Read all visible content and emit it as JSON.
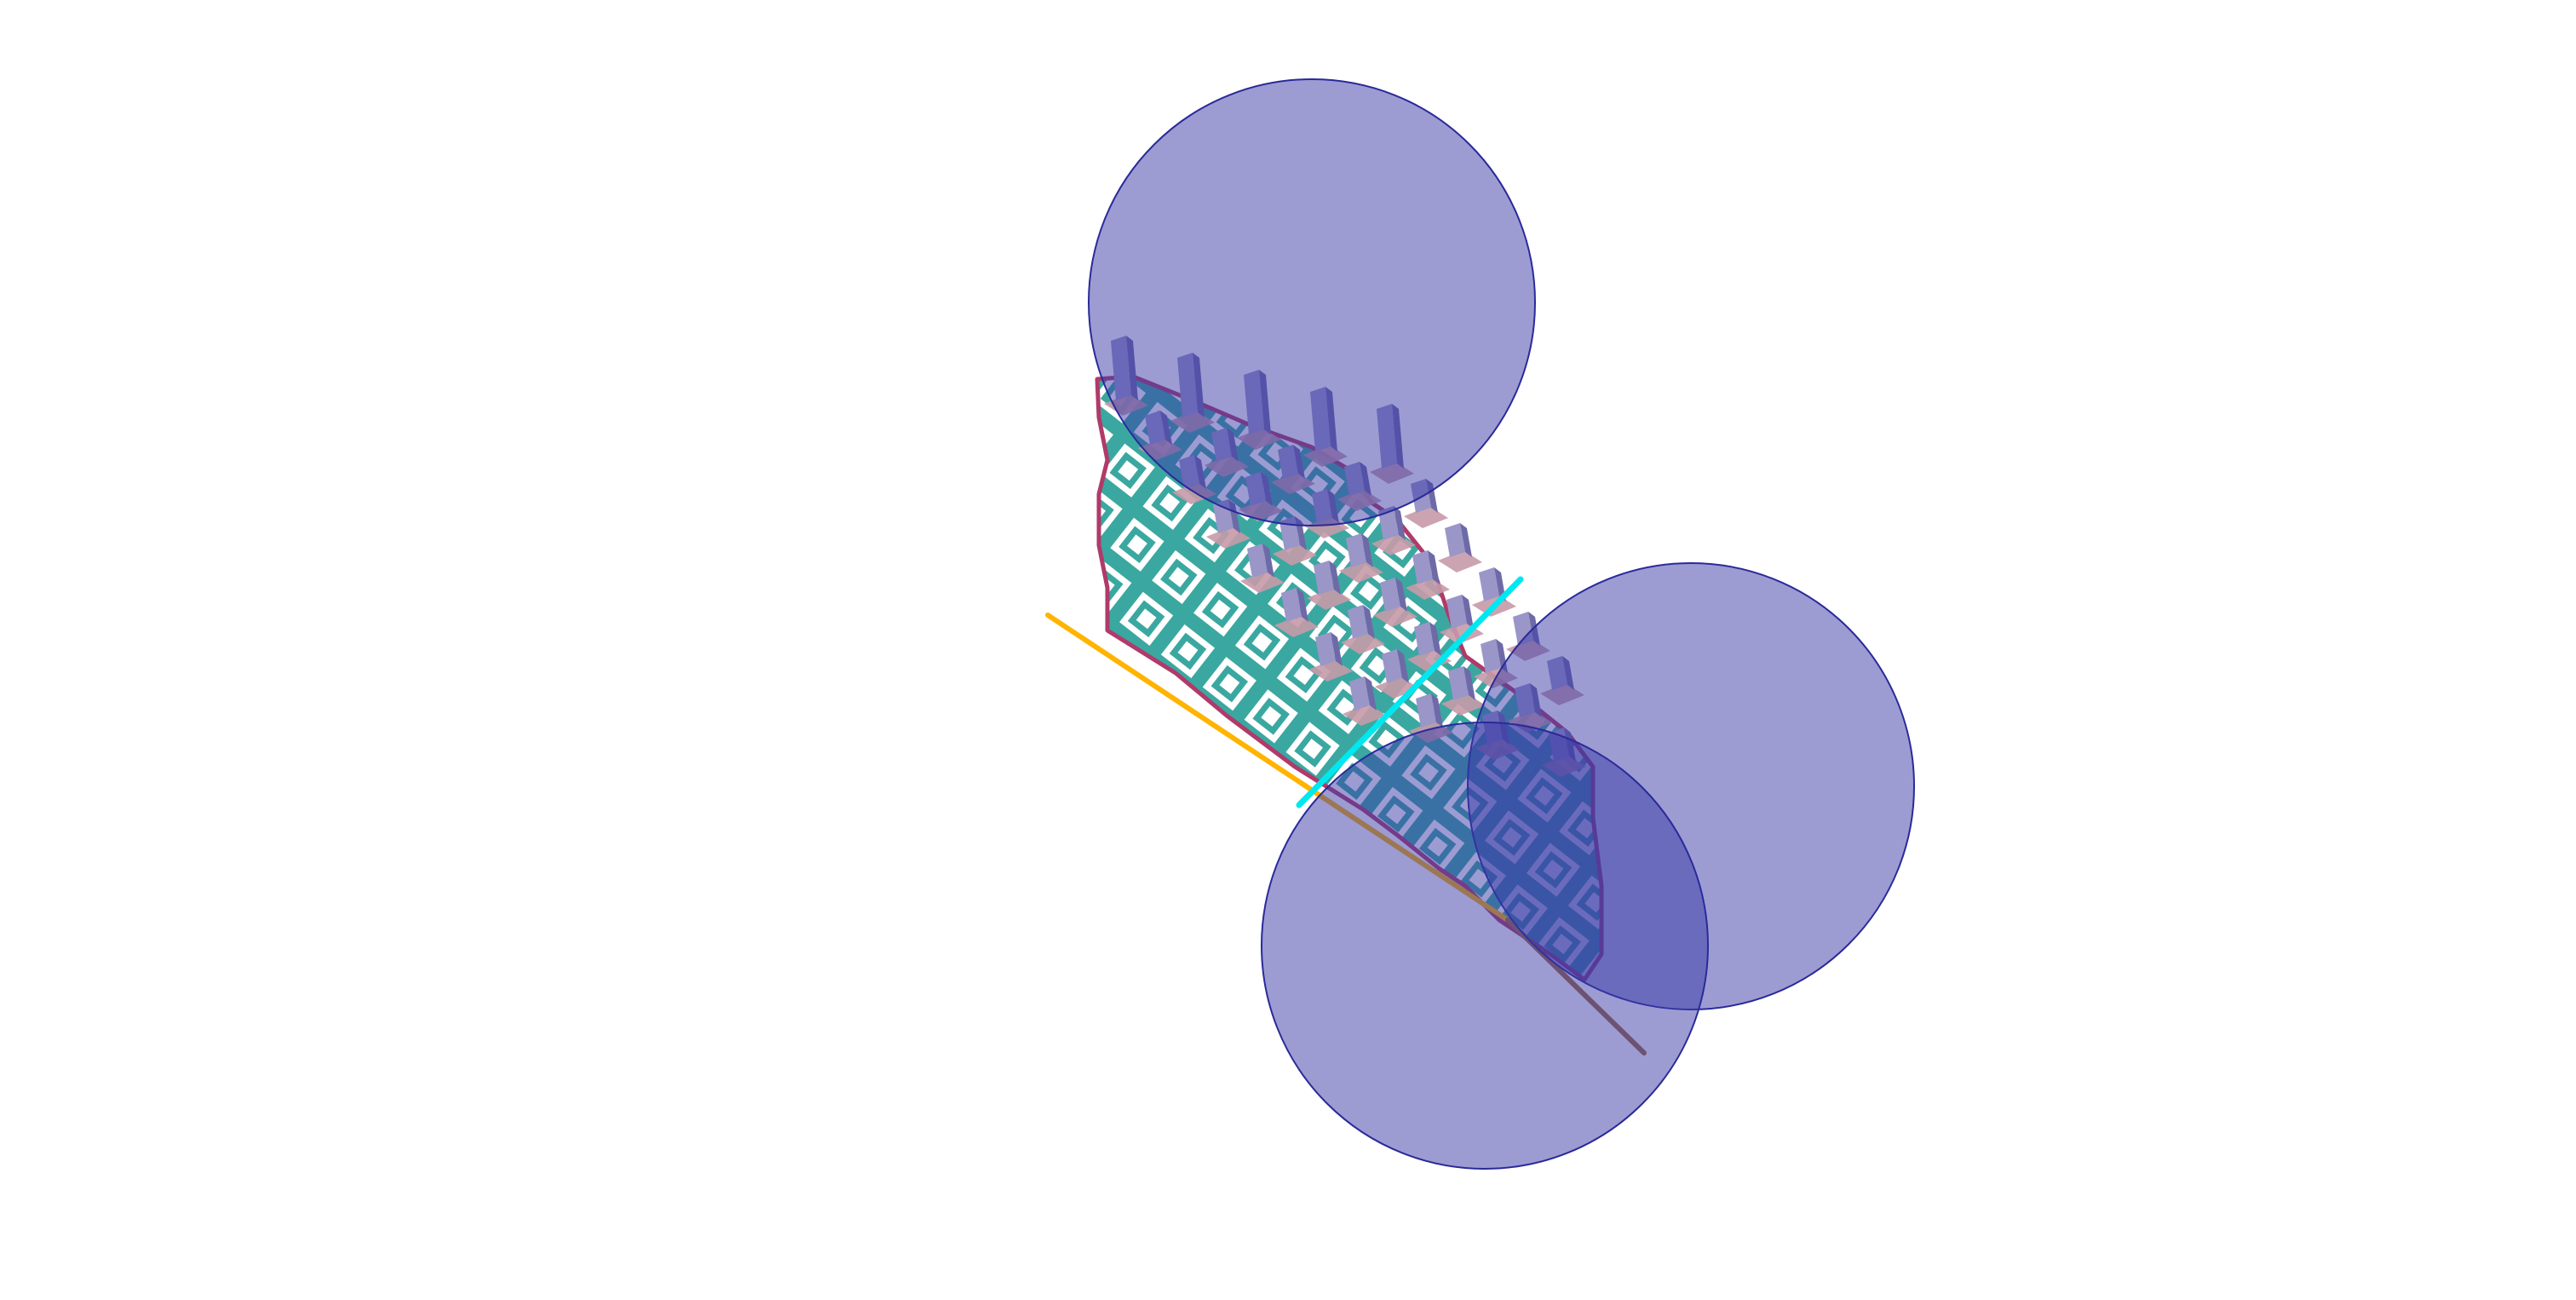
{
  "scene": {
    "kind": "3d-viewport",
    "background": "#ffffff",
    "colors": {
      "sphere_fill": "#3a3aa8",
      "sphere_stroke": "#2a2a9a",
      "lattice": "#3aa8a0",
      "boundary": "#b03a6a",
      "pillar_light": "#9a96c8",
      "pillar_dark": "#6e6aa8",
      "pad": "#c79aa8",
      "line_orange": "#ffb400",
      "line_cyan": "#00e8ef",
      "line_brown": "#a06a3a"
    },
    "objects": [
      {
        "name": "sphere-top",
        "type": "sphere"
      },
      {
        "name": "sphere-right",
        "type": "sphere"
      },
      {
        "name": "sphere-bottom",
        "type": "sphere"
      },
      {
        "name": "lattice-surface",
        "type": "mesh"
      },
      {
        "name": "pillar-array",
        "type": "mesh"
      },
      {
        "name": "orange-line",
        "type": "curve"
      },
      {
        "name": "cyan-line",
        "type": "curve"
      },
      {
        "name": "brown-line",
        "type": "curve"
      }
    ]
  }
}
